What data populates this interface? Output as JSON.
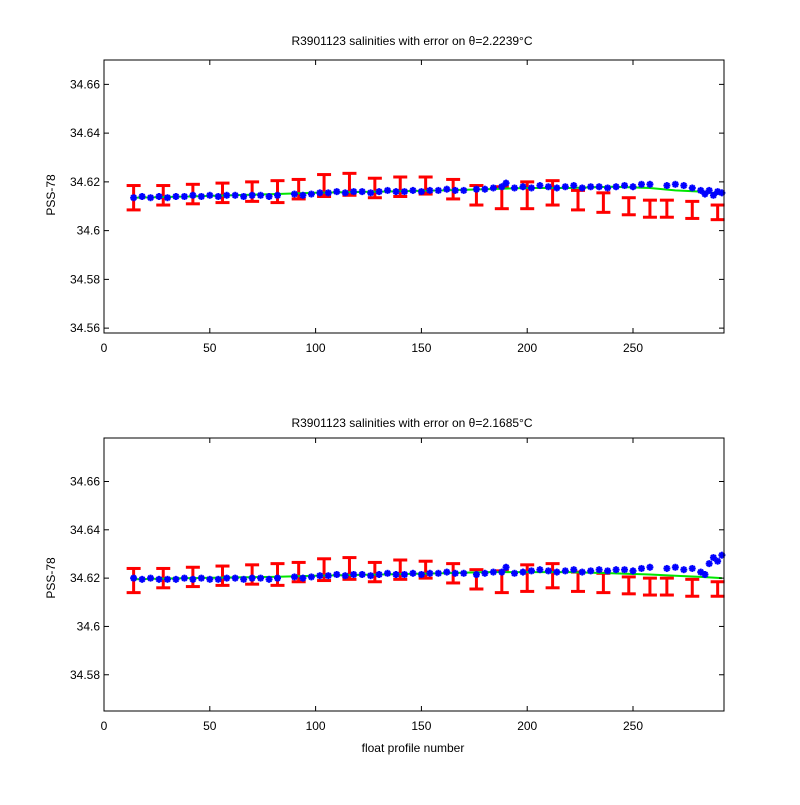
{
  "chart_data": [
    {
      "type": "scatter",
      "title": "R3901123 salinities with error on θ=2.2239°C",
      "xlabel": "",
      "ylabel": "PSS-78",
      "xlim": [
        0,
        293
      ],
      "ylim": [
        34.558,
        34.67
      ],
      "xticks": [
        0,
        50,
        100,
        150,
        200,
        250
      ],
      "yticks": [
        34.56,
        34.58,
        34.6,
        34.62,
        34.64,
        34.66
      ],
      "ytick_labels": [
        "34.56",
        "34.58",
        "34.6",
        "34.62",
        "34.64",
        "34.66"
      ],
      "grid": false,
      "legend": "none",
      "colors": {
        "error_bars": "#ff0000",
        "mapped": "#00e600",
        "float": "#0000ff"
      },
      "series": [
        {
          "role": "error-bars",
          "x": [
            14,
            28,
            42,
            56,
            70,
            82,
            92,
            104,
            116,
            128,
            140,
            152,
            165,
            176,
            188,
            200,
            212,
            224,
            236,
            248,
            258,
            266,
            278,
            290
          ],
          "center": [
            34.6135,
            34.6145,
            34.615,
            34.6155,
            34.616,
            34.616,
            34.617,
            34.6185,
            34.619,
            34.6175,
            34.618,
            34.6185,
            34.617,
            34.6145,
            34.6135,
            34.6145,
            34.6155,
            34.6125,
            34.6115,
            34.61,
            34.609,
            34.609,
            34.6085,
            34.6075
          ],
          "halfwidth": [
            0.005,
            0.004,
            0.004,
            0.004,
            0.004,
            0.0045,
            0.004,
            0.0045,
            0.0045,
            0.004,
            0.004,
            0.0035,
            0.004,
            0.004,
            0.0045,
            0.0055,
            0.005,
            0.004,
            0.004,
            0.0035,
            0.0035,
            0.0035,
            0.0035,
            0.003
          ]
        },
        {
          "role": "mapped-line",
          "x": [
            14,
            40,
            80,
            100,
            130,
            160,
            180,
            200,
            220,
            240,
            258,
            270,
            282,
            292
          ],
          "y": [
            34.6135,
            34.614,
            34.615,
            34.6155,
            34.616,
            34.6165,
            34.617,
            34.6175,
            34.6175,
            34.618,
            34.6175,
            34.6165,
            34.616,
            34.615
          ]
        },
        {
          "role": "float-points",
          "x": [
            14,
            18,
            22,
            26,
            30,
            34,
            38,
            42,
            46,
            50,
            54,
            58,
            62,
            66,
            70,
            74,
            78,
            82,
            90,
            94,
            98,
            102,
            106,
            110,
            114,
            118,
            122,
            126,
            130,
            134,
            138,
            142,
            146,
            150,
            154,
            158,
            162,
            166,
            170,
            176,
            180,
            184,
            188,
            190,
            194,
            198,
            202,
            206,
            210,
            214,
            218,
            222,
            226,
            230,
            234,
            238,
            242,
            246,
            250,
            254,
            258,
            266,
            270,
            274,
            278,
            282,
            284,
            286,
            288,
            290,
            292
          ],
          "y": [
            34.6135,
            34.614,
            34.6135,
            34.614,
            34.6135,
            34.614,
            34.614,
            34.6145,
            34.614,
            34.6145,
            34.614,
            34.6145,
            34.6145,
            34.614,
            34.6145,
            34.6145,
            34.614,
            34.6145,
            34.615,
            34.6145,
            34.615,
            34.6155,
            34.6155,
            34.616,
            34.6155,
            34.616,
            34.616,
            34.6155,
            34.616,
            34.6165,
            34.616,
            34.616,
            34.6165,
            34.616,
            34.6165,
            34.6165,
            34.617,
            34.6165,
            34.6165,
            34.617,
            34.617,
            34.6175,
            34.618,
            34.6195,
            34.6175,
            34.618,
            34.6175,
            34.6185,
            34.618,
            34.6175,
            34.618,
            34.6185,
            34.6175,
            34.618,
            34.618,
            34.6175,
            34.618,
            34.6185,
            34.618,
            34.619,
            34.619,
            34.6185,
            34.619,
            34.6185,
            34.6175,
            34.6165,
            34.615,
            34.6165,
            34.6145,
            34.616,
            34.6155
          ]
        }
      ]
    },
    {
      "type": "scatter",
      "title": "R3901123 salinities with error on θ=2.1685°C",
      "xlabel": "float profile number",
      "ylabel": "PSS-78",
      "xlim": [
        0,
        293
      ],
      "ylim": [
        34.565,
        34.678
      ],
      "xticks": [
        0,
        50,
        100,
        150,
        200,
        250
      ],
      "yticks": [
        34.58,
        34.6,
        34.62,
        34.64,
        34.66
      ],
      "ytick_labels": [
        "34.58",
        "34.6",
        "34.62",
        "34.64",
        "34.66"
      ],
      "grid": false,
      "legend": "none",
      "colors": {
        "error_bars": "#ff0000",
        "mapped": "#00e600",
        "float": "#0000ff"
      },
      "series": [
        {
          "role": "error-bars",
          "x": [
            14,
            28,
            42,
            56,
            70,
            82,
            92,
            104,
            116,
            128,
            140,
            152,
            165,
            176,
            188,
            200,
            212,
            224,
            236,
            248,
            258,
            266,
            278,
            290
          ],
          "center": [
            34.619,
            34.62,
            34.6205,
            34.621,
            34.6215,
            34.6215,
            34.6225,
            34.6235,
            34.624,
            34.6225,
            34.6235,
            34.6235,
            34.622,
            34.6195,
            34.6185,
            34.62,
            34.621,
            34.6185,
            34.618,
            34.617,
            34.6165,
            34.6165,
            34.616,
            34.6155
          ],
          "halfwidth": [
            0.005,
            0.004,
            0.004,
            0.004,
            0.004,
            0.0045,
            0.004,
            0.0045,
            0.0045,
            0.004,
            0.004,
            0.0035,
            0.004,
            0.004,
            0.0045,
            0.0055,
            0.005,
            0.004,
            0.004,
            0.0035,
            0.0035,
            0.0035,
            0.0035,
            0.003
          ]
        },
        {
          "role": "mapped-line",
          "x": [
            14,
            40,
            80,
            100,
            130,
            160,
            180,
            200,
            220,
            240,
            258,
            270,
            282,
            292
          ],
          "y": [
            34.6195,
            34.62,
            34.6205,
            34.621,
            34.6215,
            34.622,
            34.6225,
            34.6225,
            34.6225,
            34.622,
            34.6215,
            34.621,
            34.6205,
            34.62
          ]
        },
        {
          "role": "float-points",
          "x": [
            14,
            18,
            22,
            26,
            30,
            34,
            38,
            42,
            46,
            50,
            54,
            58,
            62,
            66,
            70,
            74,
            78,
            82,
            90,
            94,
            98,
            102,
            106,
            110,
            114,
            118,
            122,
            126,
            130,
            134,
            138,
            142,
            146,
            150,
            154,
            158,
            162,
            166,
            170,
            176,
            180,
            184,
            188,
            190,
            194,
            198,
            202,
            206,
            210,
            214,
            218,
            222,
            226,
            230,
            234,
            238,
            242,
            246,
            250,
            254,
            258,
            266,
            270,
            274,
            278,
            282,
            284,
            286,
            288,
            290,
            292
          ],
          "y": [
            34.62,
            34.6195,
            34.62,
            34.6195,
            34.6195,
            34.6195,
            34.62,
            34.6195,
            34.62,
            34.6195,
            34.6195,
            34.62,
            34.62,
            34.6195,
            34.62,
            34.62,
            34.6195,
            34.62,
            34.6205,
            34.62,
            34.6205,
            34.621,
            34.621,
            34.6215,
            34.621,
            34.6215,
            34.6215,
            34.621,
            34.6215,
            34.622,
            34.6215,
            34.6215,
            34.622,
            34.6215,
            34.622,
            34.622,
            34.6225,
            34.622,
            34.622,
            34.6215,
            34.622,
            34.6225,
            34.6225,
            34.6245,
            34.622,
            34.6225,
            34.623,
            34.6235,
            34.623,
            34.6225,
            34.623,
            34.6235,
            34.6225,
            34.623,
            34.6235,
            34.623,
            34.6235,
            34.6235,
            34.623,
            34.624,
            34.6245,
            34.624,
            34.6245,
            34.6235,
            34.624,
            34.6225,
            34.6215,
            34.626,
            34.6285,
            34.627,
            34.6295
          ]
        }
      ]
    }
  ]
}
